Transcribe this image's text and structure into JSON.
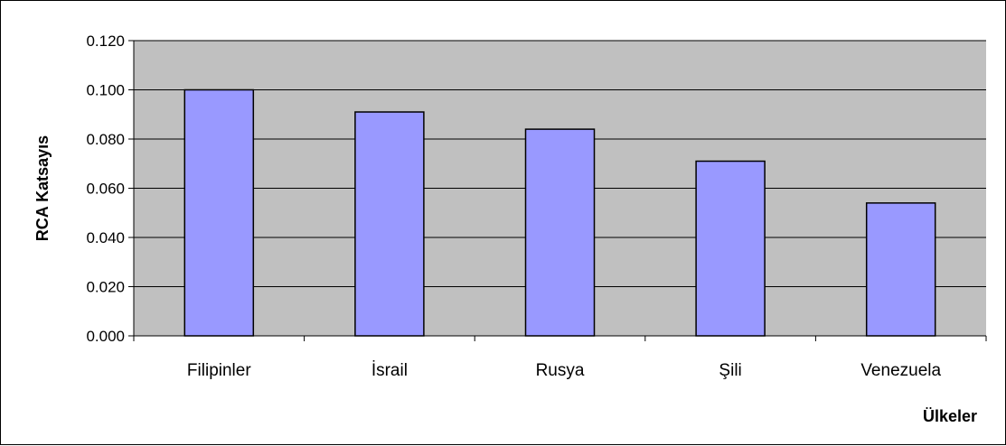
{
  "chart_data": {
    "type": "bar",
    "title": "",
    "xlabel": "Ülkeler",
    "ylabel": "RCA Katsayıs",
    "categories": [
      "Filipinler",
      "İsrail",
      "Rusya",
      "Şili",
      "Venezuela"
    ],
    "values": [
      0.1,
      0.091,
      0.084,
      0.071,
      0.054
    ],
    "ylim": [
      0,
      0.12
    ],
    "yticks": [
      "0.000",
      "0.020",
      "0.040",
      "0.060",
      "0.080",
      "0.100",
      "0.120"
    ],
    "grid": true,
    "legend": "none",
    "colors": {
      "plot_background": "#c0c0c0",
      "bar_fill": "#9999ff",
      "bar_stroke": "#000000",
      "grid": "#000000"
    }
  }
}
